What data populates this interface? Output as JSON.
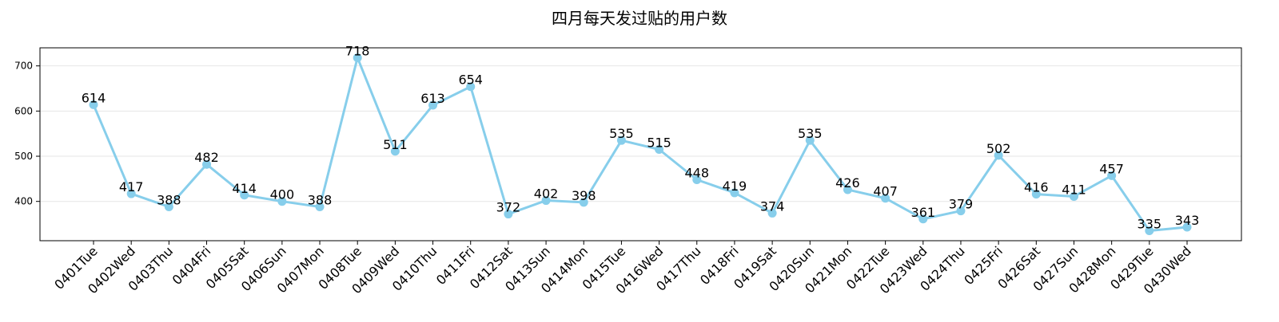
{
  "chart_data": {
    "type": "line",
    "title": "四月每天发过贴的用户数",
    "xlabel": "",
    "ylabel": "",
    "categories": [
      "0401Tue",
      "0402Wed",
      "0403Thu",
      "0404Fri",
      "0405Sat",
      "0406Sun",
      "0407Mon",
      "0408Tue",
      "0409Wed",
      "0410Thu",
      "0411Fri",
      "0412Sat",
      "0413Sun",
      "0414Mon",
      "0415Tue",
      "0416Wed",
      "0417Thu",
      "0418Fri",
      "0419Sat",
      "0420Sun",
      "0421Mon",
      "0422Tue",
      "0423Wed",
      "0424Thu",
      "0425Fri",
      "0426Sat",
      "0427Sun",
      "0428Mon",
      "0429Tue",
      "0430Wed"
    ],
    "series": [
      {
        "values": [
          614,
          417,
          388,
          482,
          414,
          400,
          388,
          718,
          511,
          613,
          654,
          372,
          402,
          398,
          535,
          515,
          448,
          419,
          374,
          535,
          426,
          407,
          361,
          379,
          502,
          416,
          411,
          457,
          335,
          343
        ]
      }
    ],
    "ylim": [
      313,
      740
    ],
    "yticks": [
      400,
      500,
      600,
      700
    ],
    "grid": "y",
    "legend": "none",
    "data_labels": true,
    "colors": {
      "line": "#87CEEB",
      "grid": "#e6e6e6",
      "axis": "#000000"
    }
  }
}
